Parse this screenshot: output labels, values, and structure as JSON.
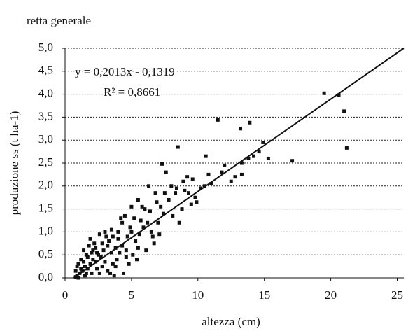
{
  "chart_data": {
    "type": "scatter",
    "title": "retta generale",
    "x_label": "altezza (cm)",
    "y_label": "produzione ss (t ha-1)",
    "equation": "y = 0,2013x - 0,1319",
    "r2": "R² = 0,8661",
    "trendline": {
      "slope": 0.2013,
      "intercept": -0.1319
    },
    "color": "#111111",
    "xlim": [
      0,
      25.5
    ],
    "xticks": [
      0,
      5,
      10,
      15,
      20,
      25
    ],
    "ylim": [
      0,
      5
    ],
    "yticks": [
      {
        "value": 0,
        "label": "0,0"
      },
      {
        "value": 0.5,
        "label": "0,5"
      },
      {
        "value": 1,
        "label": "1,0"
      },
      {
        "value": 1.5,
        "label": "1,5"
      },
      {
        "value": 2,
        "label": "2,0"
      },
      {
        "value": 2.5,
        "label": "2,5"
      },
      {
        "value": 3,
        "label": "3,0"
      },
      {
        "value": 3.5,
        "label": "3,5"
      },
      {
        "value": 4,
        "label": "4,0"
      },
      {
        "value": 4.5,
        "label": "4,5"
      },
      {
        "value": 5,
        "label": "5,0"
      }
    ],
    "grid": true,
    "x": [
      19.5,
      20.6,
      21,
      21.2,
      17.1,
      15.3,
      14.9,
      14.6,
      13.9,
      13.8,
      13.3,
      13.3,
      12.5,
      11.5,
      13.2,
      10.6,
      10.2,
      9.9,
      10.8,
      11,
      8.5,
      8.6,
      8.9,
      7.3,
      7.5,
      8.3,
      9.3,
      9.8,
      7.6,
      6.5,
      6.7,
      7.0,
      7.4,
      9.0,
      9.5,
      8.0,
      7.8,
      6.8,
      6.3,
      6.0,
      5.5,
      5.8,
      5.2,
      5.0,
      4.5,
      4.2,
      4.7,
      4.0,
      3.8,
      3.5,
      3.3,
      3.1,
      2.9,
      2.7,
      2.5,
      2.3,
      2.1,
      1.9,
      1.7,
      1.5,
      1.3,
      1.1,
      0.9,
      0.8,
      1.0,
      1.2,
      1.4,
      1.6,
      1.8,
      2.0,
      2.2,
      2.4,
      2.6,
      2.8,
      3.0,
      3.2,
      3.4,
      3.6,
      3.9,
      4.1,
      4.3,
      4.6,
      4.8,
      5.1,
      5.3,
      5.6,
      5.9,
      6.2,
      4.4,
      3.7,
      2.0,
      1.5,
      1.0,
      0.8,
      6.1,
      5.4,
      4.9,
      3.5,
      3.0,
      2.6,
      2.8,
      1.9,
      2.3,
      1.4,
      1.7,
      0.9,
      5.7,
      4.0,
      7.2,
      8.1,
      8.8,
      9.2,
      12.0,
      12.8,
      14.2,
      11.8,
      10.5,
      9.6,
      8.4,
      6.9,
      6.4,
      5.0,
      4.3,
      3.6,
      3.2,
      2.4,
      2.1,
      1.6,
      1.2,
      3.8,
      4.6,
      5.5,
      6.6,
      7.1
    ],
    "values": [
      4.02,
      3.98,
      3.63,
      2.83,
      2.55,
      2.6,
      2.95,
      2.75,
      3.38,
      2.6,
      2.5,
      2.25,
      2.1,
      3.44,
      3.25,
      2.65,
      1.95,
      1.65,
      2.25,
      2.05,
      2.85,
      1.2,
      2.1,
      2.48,
      1.85,
      1.85,
      1.85,
      1.75,
      2.3,
      1.0,
      0.75,
      1.2,
      1.4,
      1.9,
      1.6,
      2.0,
      1.7,
      1.85,
      2.0,
      1.5,
      1.7,
      1.55,
      1.3,
      1.0,
      1.35,
      1.3,
      0.9,
      0.85,
      0.65,
      0.55,
      0.8,
      0.9,
      0.6,
      0.45,
      0.5,
      0.35,
      0.4,
      0.3,
      0.2,
      0.25,
      0.15,
      0.1,
      0.05,
      0.15,
      0.3,
      0.4,
      0.6,
      0.5,
      0.7,
      0.55,
      0.75,
      0.2,
      0.1,
      0.25,
      0.35,
      0.15,
      0.1,
      0.3,
      0.4,
      0.55,
      0.7,
      0.6,
      0.3,
      0.5,
      0.8,
      0.95,
      1.1,
      1.2,
      0.1,
      0.05,
      0.1,
      0.05,
      0.0,
      0.02,
      0.6,
      0.4,
      1.1,
      1.05,
      1.0,
      0.95,
      0.75,
      0.85,
      0.65,
      0.35,
      0.45,
      0.25,
      1.25,
      1.0,
      1.55,
      1.35,
      1.5,
      2.2,
      2.45,
      2.2,
      2.65,
      2.3,
      2.0,
      2.15,
      1.95,
      1.65,
      1.45,
      1.55,
      1.2,
      0.9,
      0.7,
      0.55,
      0.6,
      0.1,
      0.2,
      0.25,
      0.45,
      0.65,
      0.9,
      0.95
    ]
  }
}
